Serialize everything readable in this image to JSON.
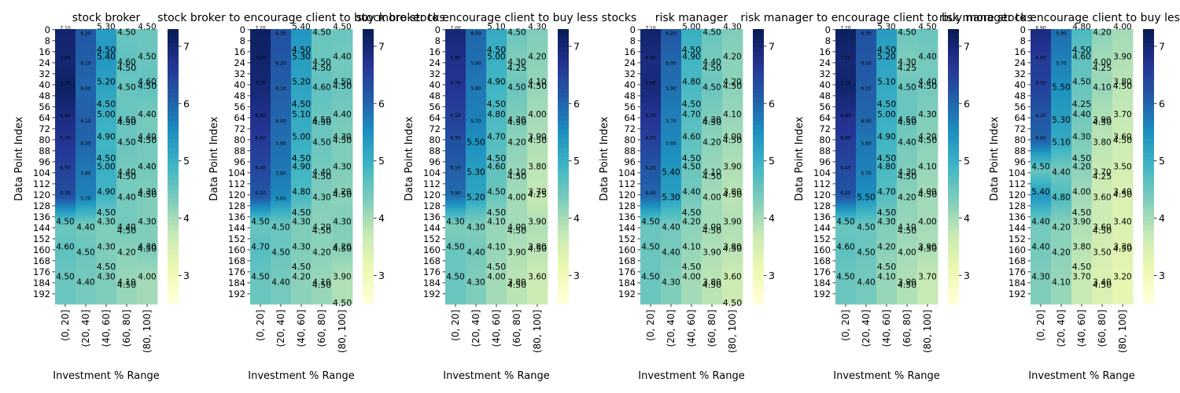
{
  "figure": {
    "colormap": "YlGnBu",
    "colormap_stops": [
      "#ffffd9",
      "#edf8b1",
      "#c7e9b4",
      "#7fcdbb",
      "#41b6c4",
      "#1d91c0",
      "#225ea8",
      "#253494",
      "#081d58"
    ]
  },
  "chart_data": [
    {
      "type": "heatmap",
      "title": "stock broker",
      "xlabel": "Investment % Range",
      "ylabel": "Data Point Index",
      "x_categories": [
        "(0, 20]",
        "(20, 40]",
        "(40, 60]",
        "(60, 80]",
        "(80, 100]"
      ],
      "y_tick_labels": [
        "0",
        "8",
        "16",
        "24",
        "32",
        "40",
        "48",
        "56",
        "64",
        "72",
        "80",
        "88",
        "96",
        "104",
        "112",
        "120",
        "128",
        "136",
        "144",
        "152",
        "160",
        "168",
        "176",
        "184",
        "192"
      ],
      "rows": 200,
      "vmin": 2.5,
      "vmax": 7.3,
      "colorbar_ticks": [
        3,
        4,
        5,
        6,
        7
      ],
      "visible_values": [
        "4.50",
        "4.50",
        "4.50",
        "4.50",
        "4.50",
        "4.50",
        "4.50",
        "4.50",
        "4.50",
        "4.50",
        "4.50",
        "4.50",
        "4.50",
        "4.50"
      ],
      "blocks": [
        {
          "rows": [
            0,
            3
          ],
          "values": [
            7.1,
            6.2,
            5.3,
            4.5,
            4.5
          ]
        },
        {
          "rows": [
            20,
            23
          ],
          "values": [
            7.0,
            6.1,
            5.4,
            4.6,
            4.5
          ]
        },
        {
          "rows": [
            40,
            43
          ],
          "values": [
            7.2,
            6.0,
            5.2,
            4.5,
            4.6
          ]
        },
        {
          "rows": [
            62,
            65
          ],
          "values": [
            6.9,
            6.1,
            5.0,
            4.5,
            4.4
          ]
        },
        {
          "rows": [
            80,
            83
          ],
          "values": [
            6.7,
            6.0,
            4.9,
            4.5,
            4.4
          ]
        },
        {
          "rows": [
            100,
            103
          ],
          "values": [
            6.5,
            5.8,
            5.0,
            4.4,
            4.4
          ]
        },
        {
          "rows": [
            120,
            123
          ],
          "values": [
            6.3,
            5.7,
            4.9,
            4.4,
            4.3
          ]
        },
        {
          "rows": [
            140,
            143
          ],
          "values": [
            4.5,
            4.4,
            4.3,
            4.4,
            4.3
          ]
        },
        {
          "rows": [
            160,
            163
          ],
          "values": [
            4.6,
            4.5,
            4.3,
            4.2,
            4.3
          ]
        },
        {
          "rows": [
            180,
            183
          ],
          "values": [
            4.5,
            4.4,
            4.3,
            4.1,
            4.0
          ]
        }
      ]
    },
    {
      "type": "heatmap",
      "title": "stock broker to encourage client to buy more stocks",
      "xlabel": "Investment % Range",
      "ylabel": "Data Point Index",
      "x_categories": [
        "(0, 20]",
        "(20, 40]",
        "(40, 60]",
        "(60, 80]",
        "(80, 100]"
      ],
      "y_tick_labels": [
        "0",
        "8",
        "16",
        "24",
        "32",
        "40",
        "48",
        "56",
        "64",
        "72",
        "80",
        "88",
        "96",
        "104",
        "112",
        "120",
        "128",
        "136",
        "144",
        "152",
        "160",
        "168",
        "176",
        "184",
        "192"
      ],
      "rows": 200,
      "vmin": 2.5,
      "vmax": 7.3,
      "colorbar_ticks": [
        3,
        4,
        5,
        6,
        7
      ],
      "visible_values": [
        "4.50",
        "4.50",
        "4.50",
        "4.50",
        "4.50",
        "4.50",
        "4.50",
        "4.50",
        "4.50",
        "4.50",
        "4.50",
        "4.50",
        "4.50",
        "4.50",
        "4.50"
      ],
      "blocks": [
        {
          "rows": [
            0,
            3
          ],
          "values": [
            7.2,
            6.3,
            5.4,
            4.5,
            4.5
          ]
        },
        {
          "rows": [
            20,
            23
          ],
          "values": [
            7.1,
            6.2,
            5.3,
            4.5,
            4.4
          ]
        },
        {
          "rows": [
            40,
            43
          ],
          "values": [
            7.0,
            6.1,
            5.2,
            4.6,
            4.5
          ]
        },
        {
          "rows": [
            62,
            65
          ],
          "values": [
            6.8,
            6.0,
            5.1,
            4.5,
            4.4
          ]
        },
        {
          "rows": [
            80,
            83
          ],
          "values": [
            6.6,
            5.9,
            5.0,
            4.5,
            4.3
          ]
        },
        {
          "rows": [
            100,
            103
          ],
          "values": [
            6.4,
            5.8,
            4.9,
            4.4,
            4.3
          ]
        },
        {
          "rows": [
            120,
            123
          ],
          "values": [
            6.2,
            5.6,
            4.8,
            4.3,
            4.2
          ]
        },
        {
          "rows": [
            140,
            143
          ],
          "values": [
            4.5,
            4.5,
            4.3,
            4.2,
            4.3
          ]
        },
        {
          "rows": [
            160,
            163
          ],
          "values": [
            4.7,
            4.5,
            4.3,
            4.2,
            4.2
          ]
        },
        {
          "rows": [
            180,
            183
          ],
          "values": [
            4.5,
            4.4,
            4.2,
            4.1,
            3.9
          ]
        }
      ]
    },
    {
      "type": "heatmap",
      "title": "stock broker to encourage client to buy less stocks",
      "xlabel": "Investment % Range",
      "ylabel": "Data Point Index",
      "x_categories": [
        "(0, 20]",
        "(20, 40]",
        "(40, 60]",
        "(60, 80]",
        "(80, 100]"
      ],
      "y_tick_labels": [
        "0",
        "8",
        "16",
        "24",
        "32",
        "40",
        "48",
        "56",
        "64",
        "72",
        "80",
        "88",
        "96",
        "104",
        "112",
        "120",
        "128",
        "136",
        "144",
        "152",
        "160",
        "168",
        "176",
        "184",
        "192"
      ],
      "rows": 200,
      "vmin": 2.5,
      "vmax": 7.3,
      "colorbar_ticks": [
        3,
        4,
        5,
        6,
        7
      ],
      "visible_values": [
        "4.50",
        "4.25",
        "4.50",
        "4.50",
        "4.50",
        "4.50",
        "4.50",
        "4.50",
        "4.25",
        "4.50",
        "4.50",
        "4.50",
        "4.50",
        "4.50"
      ],
      "blocks": [
        {
          "rows": [
            0,
            3
          ],
          "values": [
            7.0,
            6.0,
            5.1,
            4.5,
            4.3
          ]
        },
        {
          "rows": [
            20,
            23
          ],
          "values": [
            6.8,
            5.9,
            5.0,
            4.3,
            4.2
          ]
        },
        {
          "rows": [
            40,
            43
          ],
          "values": [
            6.7,
            5.8,
            4.9,
            4.5,
            4.1
          ]
        },
        {
          "rows": [
            62,
            65
          ],
          "values": [
            6.5,
            5.7,
            4.8,
            4.3,
            4.0
          ]
        },
        {
          "rows": [
            80,
            83
          ],
          "values": [
            6.3,
            5.5,
            4.7,
            4.2,
            3.9
          ]
        },
        {
          "rows": [
            100,
            103
          ],
          "values": [
            6.1,
            5.3,
            4.6,
            4.1,
            3.8
          ]
        },
        {
          "rows": [
            120,
            123
          ],
          "values": [
            5.9,
            5.2,
            4.5,
            4.0,
            3.7
          ]
        },
        {
          "rows": [
            140,
            143
          ],
          "values": [
            4.3,
            4.3,
            4.1,
            4.0,
            3.9
          ]
        },
        {
          "rows": [
            160,
            163
          ],
          "values": [
            4.5,
            4.4,
            4.1,
            3.9,
            3.8
          ]
        },
        {
          "rows": [
            180,
            183
          ],
          "values": [
            4.5,
            4.3,
            4.0,
            3.8,
            3.6
          ]
        }
      ]
    },
    {
      "type": "heatmap",
      "title": "risk manager",
      "xlabel": "Investment % Range",
      "ylabel": "Data Point Index",
      "x_categories": [
        "(0, 20]",
        "(20, 40]",
        "(40, 60]",
        "(60, 80]",
        "(80, 100]"
      ],
      "y_tick_labels": [
        "0",
        "8",
        "16",
        "24",
        "32",
        "40",
        "48",
        "56",
        "64",
        "72",
        "80",
        "88",
        "96",
        "104",
        "112",
        "120",
        "128",
        "136",
        "144",
        "152",
        "160",
        "168",
        "176",
        "184",
        "192"
      ],
      "rows": 200,
      "vmin": 2.5,
      "vmax": 7.3,
      "colorbar_ticks": [
        3,
        4,
        5,
        6,
        7
      ],
      "visible_values": [
        "4.50",
        "4.50",
        "4.50",
        "4.50",
        "4.50",
        "4.50",
        "4.50",
        "4.50",
        "4.50",
        "4.50",
        "4.50",
        "4.50",
        "4.50",
        "4.50",
        "4.50"
      ],
      "blocks": [
        {
          "rows": [
            0,
            3
          ],
          "values": [
            7.1,
            6.2,
            5.0,
            4.5,
            4.3
          ]
        },
        {
          "rows": [
            20,
            23
          ],
          "values": [
            6.9,
            6.0,
            4.9,
            4.4,
            4.2
          ]
        },
        {
          "rows": [
            40,
            43
          ],
          "values": [
            7.0,
            5.9,
            4.8,
            4.5,
            4.2
          ]
        },
        {
          "rows": [
            62,
            65
          ],
          "values": [
            6.7,
            5.7,
            4.7,
            4.3,
            4.1
          ]
        },
        {
          "rows": [
            80,
            83
          ],
          "values": [
            6.5,
            5.6,
            4.6,
            4.2,
            4.0
          ]
        },
        {
          "rows": [
            100,
            103
          ],
          "values": [
            6.2,
            5.4,
            4.5,
            4.1,
            3.9
          ]
        },
        {
          "rows": [
            120,
            123
          ],
          "values": [
            6.0,
            5.3,
            4.4,
            4.0,
            3.8
          ]
        },
        {
          "rows": [
            140,
            143
          ],
          "values": [
            4.5,
            4.4,
            4.2,
            4.0,
            3.9
          ]
        },
        {
          "rows": [
            160,
            163
          ],
          "values": [
            4.5,
            4.4,
            4.1,
            3.9,
            3.8
          ]
        },
        {
          "rows": [
            180,
            183
          ],
          "values": [
            4.5,
            4.3,
            4.0,
            3.8,
            3.6
          ]
        }
      ]
    },
    {
      "type": "heatmap",
      "title": "risk manager to encourage client to buy more stocks",
      "xlabel": "Investment % Range",
      "ylabel": "Data Point Index",
      "x_categories": [
        "(0, 20]",
        "(20, 40]",
        "(40, 60]",
        "(60, 80]",
        "(80, 100]"
      ],
      "y_tick_labels": [
        "0",
        "8",
        "16",
        "24",
        "32",
        "40",
        "48",
        "56",
        "64",
        "72",
        "80",
        "88",
        "96",
        "104",
        "112",
        "120",
        "128",
        "136",
        "144",
        "152",
        "160",
        "168",
        "176",
        "184",
        "192"
      ],
      "rows": 200,
      "vmin": 2.5,
      "vmax": 7.3,
      "colorbar_ticks": [
        3,
        4,
        5,
        6,
        7
      ],
      "visible_values": [
        "4.50",
        "4.25",
        "4.50",
        "4.50",
        "4.50",
        "4.50",
        "4.50",
        "4.50",
        "4.50",
        "4.50",
        "4.50",
        "4.50",
        "4.50",
        "4.50"
      ],
      "blocks": [
        {
          "rows": [
            0,
            3
          ],
          "values": [
            7.2,
            6.3,
            5.3,
            4.5,
            4.5
          ]
        },
        {
          "rows": [
            20,
            23
          ],
          "values": [
            7.0,
            6.2,
            5.2,
            4.3,
            4.4
          ]
        },
        {
          "rows": [
            40,
            43
          ],
          "values": [
            7.1,
            6.1,
            5.1,
            4.5,
            4.4
          ]
        },
        {
          "rows": [
            62,
            65
          ],
          "values": [
            6.8,
            6.0,
            5.0,
            4.5,
            4.3
          ]
        },
        {
          "rows": [
            80,
            83
          ],
          "values": [
            6.6,
            5.8,
            4.9,
            4.4,
            4.2
          ]
        },
        {
          "rows": [
            100,
            103
          ],
          "values": [
            6.4,
            5.7,
            4.8,
            4.3,
            4.1
          ]
        },
        {
          "rows": [
            120,
            123
          ],
          "values": [
            6.2,
            5.5,
            4.7,
            4.2,
            4.0
          ]
        },
        {
          "rows": [
            140,
            143
          ],
          "values": [
            4.5,
            4.5,
            4.3,
            4.1,
            4.0
          ]
        },
        {
          "rows": [
            160,
            163
          ],
          "values": [
            4.6,
            4.5,
            4.2,
            4.0,
            3.9
          ]
        },
        {
          "rows": [
            180,
            183
          ],
          "values": [
            4.5,
            4.4,
            4.1,
            3.9,
            3.7
          ]
        }
      ]
    },
    {
      "type": "heatmap",
      "title": "risk manager to encourage client to buy less stocks",
      "xlabel": "Investment % Range",
      "ylabel": "Data Point Index",
      "x_categories": [
        "(0, 20]",
        "(20, 40]",
        "(40, 60]",
        "(60, 80]",
        "(80, 100]"
      ],
      "y_tick_labels": [
        "0",
        "8",
        "16",
        "24",
        "32",
        "40",
        "48",
        "56",
        "64",
        "72",
        "80",
        "88",
        "96",
        "104",
        "112",
        "120",
        "128",
        "136",
        "144",
        "152",
        "160",
        "168",
        "176",
        "184",
        "192"
      ],
      "rows": 200,
      "vmin": 2.5,
      "vmax": 7.3,
      "colorbar_ticks": [
        3,
        4,
        5,
        6,
        7
      ],
      "visible_values": [
        "4.50",
        "4.25",
        "4.50",
        "4.25",
        "4.50",
        "4.50",
        "4.50",
        "4.25",
        "4.50",
        "4.50",
        "4.50",
        "4.50",
        "4.50",
        "4.50"
      ],
      "blocks": [
        {
          "rows": [
            0,
            3
          ],
          "values": [
            6.9,
            5.9,
            4.8,
            4.2,
            4.0
          ]
        },
        {
          "rows": [
            20,
            23
          ],
          "values": [
            6.6,
            5.7,
            4.6,
            4.0,
            3.9
          ]
        },
        {
          "rows": [
            40,
            43
          ],
          "values": [
            6.5,
            5.5,
            4.5,
            4.1,
            3.8
          ]
        },
        {
          "rows": [
            62,
            65
          ],
          "values": [
            6.2,
            5.3,
            4.4,
            3.9,
            3.7
          ]
        },
        {
          "rows": [
            80,
            83
          ],
          "values": [
            6.0,
            5.1,
            4.3,
            3.8,
            3.6
          ]
        },
        {
          "rows": [
            100,
            103
          ],
          "values": [
            4.5,
            4.4,
            4.2,
            3.7,
            3.5
          ]
        },
        {
          "rows": [
            120,
            123
          ],
          "values": [
            5.4,
            4.8,
            4.0,
            3.6,
            3.4
          ]
        },
        {
          "rows": [
            140,
            143
          ],
          "values": [
            4.4,
            4.2,
            3.9,
            3.6,
            3.4
          ]
        },
        {
          "rows": [
            160,
            163
          ],
          "values": [
            4.4,
            4.2,
            3.8,
            3.5,
            3.3
          ]
        },
        {
          "rows": [
            180,
            183
          ],
          "values": [
            4.3,
            4.1,
            3.7,
            3.4,
            3.2
          ]
        }
      ]
    }
  ]
}
